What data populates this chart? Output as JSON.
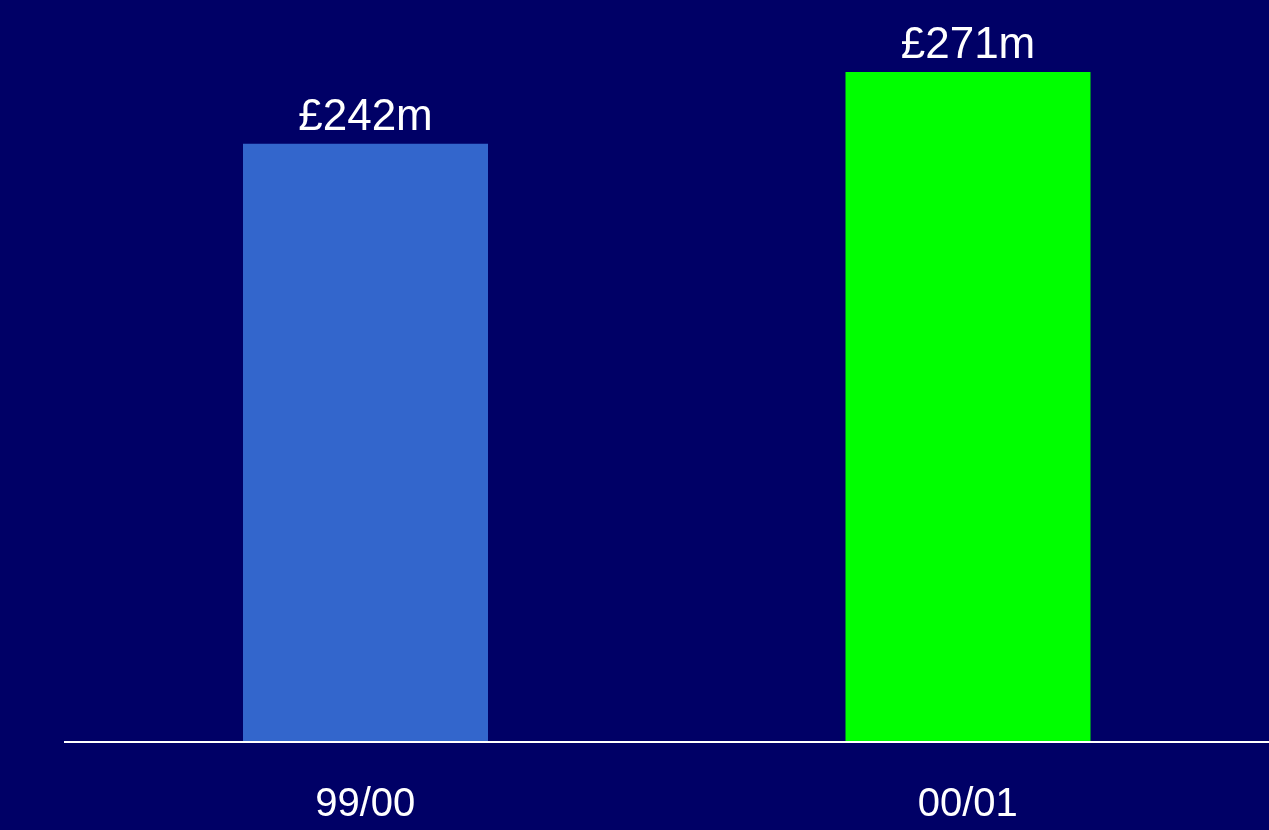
{
  "chart_data": {
    "type": "bar",
    "categories": [
      "99/00",
      "00/01"
    ],
    "values": [
      242,
      271
    ],
    "colors": [
      "#3366cc",
      "#00ff00"
    ],
    "value_labels": [
      "£242m",
      "£271m"
    ],
    "tick_labels": "x"
  }
}
